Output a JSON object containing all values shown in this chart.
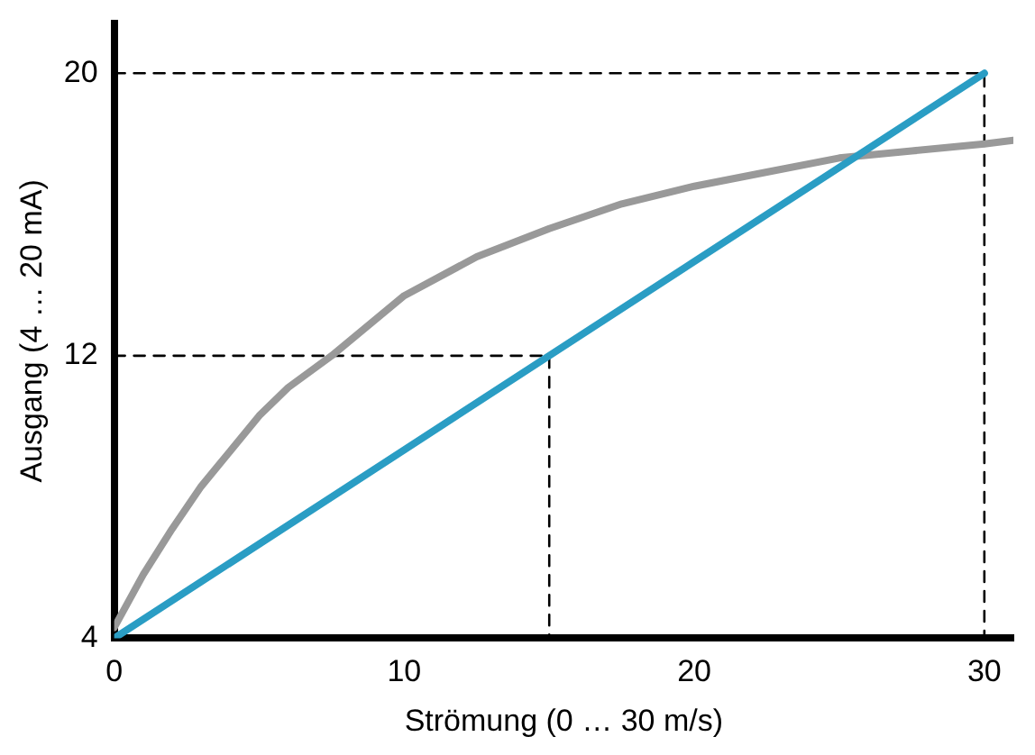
{
  "chart_data": {
    "type": "line",
    "xlabel": "Strömung (0 … 30 m/s)",
    "ylabel": "Ausgang (4 … 20 mA)",
    "xlim": [
      0,
      31
    ],
    "ylim": [
      4,
      21.4
    ],
    "xticks": [
      0,
      10,
      20,
      30
    ],
    "yticks": [
      4,
      12,
      20
    ],
    "grid": false,
    "legend": false,
    "marker": "none",
    "series": [
      {
        "color": "#2a9dc4",
        "x": [
          0,
          30
        ],
        "values": [
          4,
          20
        ]
      },
      {
        "color": "#999999",
        "x": [
          0,
          1,
          2,
          3,
          4,
          5,
          6,
          7.5,
          10,
          12.5,
          15,
          17.5,
          20,
          22.5,
          25,
          27.5,
          30,
          31
        ],
        "values": [
          4.3,
          5.8,
          7.1,
          8.3,
          9.3,
          10.3,
          11.1,
          12,
          13.7,
          14.8,
          15.6,
          16.3,
          16.8,
          17.2,
          17.6,
          17.8,
          18,
          18.1
        ]
      },
      {
        "color": "#000000",
        "line_style": "dashed",
        "x": [
          0,
          30,
          30
        ],
        "values": [
          20,
          20,
          4
        ]
      },
      {
        "color": "#000000",
        "line_style": "dashed",
        "x": [
          0,
          15,
          15
        ],
        "values": [
          12,
          12,
          4
        ]
      }
    ]
  }
}
